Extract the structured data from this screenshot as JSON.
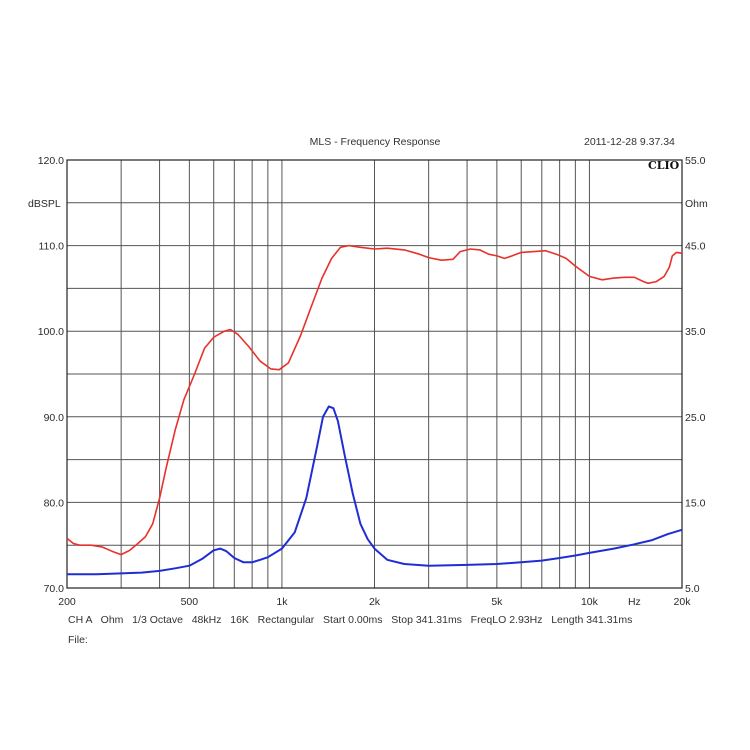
{
  "header": {
    "title": "MLS - Frequency Response",
    "timestamp": "2011-12-28 9.37.34",
    "brand": "CLIO"
  },
  "footer": {
    "info": "CH A   Ohm   1/3 Octave   48kHz   16K   Rectangular   Start 0.00ms   Stop 341.31ms   FreqLO 2.93Hz   Length 341.31ms",
    "file_label": "File:"
  },
  "chart_data": {
    "type": "line",
    "title": "MLS - Frequency Response",
    "xlabel": "Hz",
    "x_scale": "log",
    "xlim": [
      200,
      20000
    ],
    "x_tick_labels": [
      {
        "value": 200,
        "label": "200"
      },
      {
        "value": 500,
        "label": "500"
      },
      {
        "value": 1000,
        "label": "1k"
      },
      {
        "value": 2000,
        "label": "2k"
      },
      {
        "value": 5000,
        "label": "5k"
      },
      {
        "value": 10000,
        "label": "10k"
      },
      {
        "value": 20000,
        "label": "20k"
      }
    ],
    "x_unit_label": "Hz",
    "y_left": {
      "label": "dBSPL",
      "ylim": [
        70,
        120
      ],
      "ticks": [
        "70.0",
        "80.0",
        "90.0",
        "100.0",
        "110.0",
        "120.0"
      ]
    },
    "y_right": {
      "label": "Ohm",
      "ylim": [
        5,
        55
      ],
      "ticks": [
        "5.0",
        "15.0",
        "25.0",
        "35.0",
        "45.0",
        "55.0"
      ]
    },
    "grid": true,
    "series": [
      {
        "axis": "left",
        "color": "#e8312a",
        "points": [
          [
            200,
            75.8
          ],
          [
            210,
            75.2
          ],
          [
            220,
            75.0
          ],
          [
            240,
            75.0
          ],
          [
            260,
            74.8
          ],
          [
            280,
            74.3
          ],
          [
            300,
            73.9
          ],
          [
            320,
            74.4
          ],
          [
            340,
            75.2
          ],
          [
            360,
            76.0
          ],
          [
            380,
            77.5
          ],
          [
            400,
            80.5
          ],
          [
            420,
            84.0
          ],
          [
            450,
            88.5
          ],
          [
            480,
            92.0
          ],
          [
            520,
            95.0
          ],
          [
            560,
            98.0
          ],
          [
            600,
            99.3
          ],
          [
            650,
            100.0
          ],
          [
            680,
            100.2
          ],
          [
            720,
            99.6
          ],
          [
            780,
            98.2
          ],
          [
            850,
            96.5
          ],
          [
            920,
            95.6
          ],
          [
            980,
            95.5
          ],
          [
            1050,
            96.3
          ],
          [
            1150,
            99.5
          ],
          [
            1250,
            103.0
          ],
          [
            1350,
            106.2
          ],
          [
            1450,
            108.5
          ],
          [
            1550,
            109.8
          ],
          [
            1650,
            110.0
          ],
          [
            1800,
            109.8
          ],
          [
            2000,
            109.6
          ],
          [
            2200,
            109.7
          ],
          [
            2500,
            109.5
          ],
          [
            2800,
            109.0
          ],
          [
            3000,
            108.6
          ],
          [
            3300,
            108.3
          ],
          [
            3600,
            108.4
          ],
          [
            3800,
            109.3
          ],
          [
            4100,
            109.6
          ],
          [
            4400,
            109.5
          ],
          [
            4700,
            109.0
          ],
          [
            5000,
            108.8
          ],
          [
            5300,
            108.5
          ],
          [
            5600,
            108.8
          ],
          [
            6000,
            109.2
          ],
          [
            6600,
            109.3
          ],
          [
            7200,
            109.4
          ],
          [
            7800,
            109.0
          ],
          [
            8400,
            108.5
          ],
          [
            9000,
            107.6
          ],
          [
            10000,
            106.4
          ],
          [
            11000,
            106.0
          ],
          [
            12000,
            106.2
          ],
          [
            13000,
            106.3
          ],
          [
            14000,
            106.3
          ],
          [
            15000,
            105.8
          ],
          [
            15500,
            105.6
          ],
          [
            16500,
            105.8
          ],
          [
            17500,
            106.4
          ],
          [
            18200,
            107.5
          ],
          [
            18600,
            108.8
          ],
          [
            19200,
            109.2
          ],
          [
            20000,
            109.1
          ]
        ]
      },
      {
        "axis": "right",
        "color": "#1f2ed4",
        "points": [
          [
            200,
            6.6
          ],
          [
            250,
            6.6
          ],
          [
            300,
            6.7
          ],
          [
            350,
            6.8
          ],
          [
            400,
            7.0
          ],
          [
            450,
            7.3
          ],
          [
            500,
            7.6
          ],
          [
            550,
            8.4
          ],
          [
            600,
            9.4
          ],
          [
            630,
            9.6
          ],
          [
            660,
            9.3
          ],
          [
            700,
            8.5
          ],
          [
            750,
            8.0
          ],
          [
            800,
            8.0
          ],
          [
            850,
            8.3
          ],
          [
            900,
            8.6
          ],
          [
            1000,
            9.6
          ],
          [
            1100,
            11.5
          ],
          [
            1200,
            15.5
          ],
          [
            1300,
            21.5
          ],
          [
            1360,
            25.0
          ],
          [
            1420,
            26.2
          ],
          [
            1470,
            26.0
          ],
          [
            1520,
            24.5
          ],
          [
            1600,
            20.5
          ],
          [
            1700,
            16.0
          ],
          [
            1800,
            12.5
          ],
          [
            1900,
            10.7
          ],
          [
            2000,
            9.6
          ],
          [
            2200,
            8.3
          ],
          [
            2500,
            7.8
          ],
          [
            3000,
            7.6
          ],
          [
            4000,
            7.7
          ],
          [
            5000,
            7.8
          ],
          [
            6000,
            8.0
          ],
          [
            7000,
            8.2
          ],
          [
            8000,
            8.5
          ],
          [
            9000,
            8.8
          ],
          [
            10000,
            9.1
          ],
          [
            12000,
            9.6
          ],
          [
            14000,
            10.1
          ],
          [
            16000,
            10.6
          ],
          [
            18000,
            11.3
          ],
          [
            20000,
            11.8
          ]
        ]
      }
    ]
  }
}
